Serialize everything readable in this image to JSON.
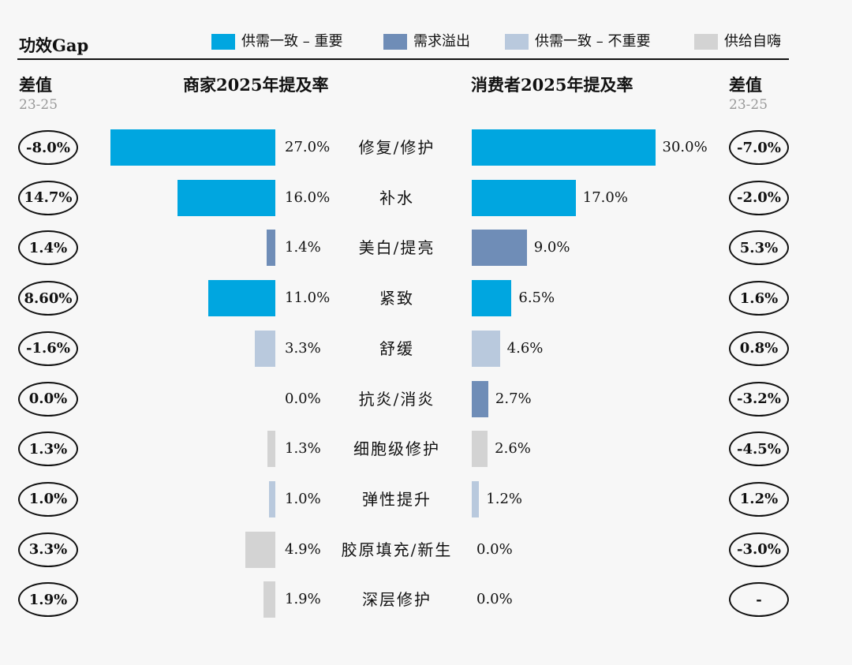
{
  "chart_data": {
    "type": "bar",
    "title": "功效Gap",
    "legend": [
      {
        "label": "供需一致 – 重要",
        "color": "#00a6e0"
      },
      {
        "label": "需求溢出",
        "color": "#6f8db7"
      },
      {
        "label": "供需一致 – 不重要",
        "color": "#b9c9dd"
      },
      {
        "label": "供给自嗨",
        "color": "#d3d3d3"
      }
    ],
    "left_header": {
      "title": "差值",
      "sub": "23-25"
    },
    "right_header": {
      "title": "差值",
      "sub": "23-25"
    },
    "merchant_header": "商家2025年提及率",
    "consumer_header": "消费者2025年提及率",
    "categories": [
      "修复/修护",
      "补水",
      "美白/提亮",
      "紧致",
      "舒缓",
      "抗炎/消炎",
      "细胞级修护",
      "弹性提升",
      "胶原填充/新生",
      "深层修护"
    ],
    "series": [
      {
        "name": "商家2025年提及率",
        "values": [
          27.0,
          16.0,
          1.4,
          11.0,
          3.3,
          0.0,
          1.3,
          1.0,
          4.9,
          1.9
        ]
      },
      {
        "name": "消费者2025年提及率",
        "values": [
          30.0,
          17.0,
          9.0,
          6.5,
          4.6,
          2.7,
          2.6,
          1.2,
          0.0,
          0.0
        ]
      }
    ],
    "merchant_labels": [
      "27.0%",
      "16.0%",
      "1.4%",
      "11.0%",
      "3.3%",
      "0.0%",
      "1.3%",
      "1.0%",
      "4.9%",
      "1.9%"
    ],
    "consumer_labels": [
      "30.0%",
      "17.0%",
      "9.0%",
      "6.5%",
      "4.6%",
      "2.7%",
      "2.6%",
      "1.2%",
      "0.0%",
      "0.0%"
    ],
    "merchant_colors": [
      "#00a6e0",
      "#00a6e0",
      "#6f8db7",
      "#00a6e0",
      "#b9c9dd",
      "#b9c9dd",
      "#d3d3d3",
      "#b9c9dd",
      "#d3d3d3",
      "#d3d3d3"
    ],
    "consumer_colors": [
      "#00a6e0",
      "#00a6e0",
      "#6f8db7",
      "#00a6e0",
      "#b9c9dd",
      "#6f8db7",
      "#d3d3d3",
      "#b9c9dd",
      "#d3d3d3",
      "#d3d3d3"
    ],
    "merchant_diff": [
      "-8.0%",
      "14.7%",
      "1.4%",
      "8.60%",
      "-1.6%",
      "0.0%",
      "1.3%",
      "1.0%",
      "3.3%",
      "1.9%"
    ],
    "consumer_diff": [
      "-7.0%",
      "-2.0%",
      "5.3%",
      "1.6%",
      "0.8%",
      "-3.2%",
      "-4.5%",
      "1.2%",
      "-3.0%",
      "-"
    ]
  }
}
